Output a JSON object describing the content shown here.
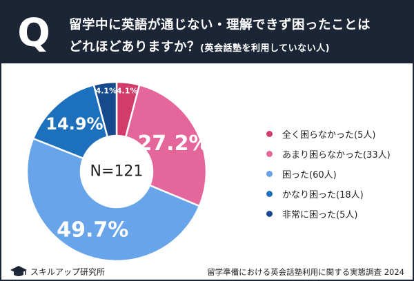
{
  "header": {
    "badge": "Q",
    "question_line1": "留学中に英語が通じない・理解できず困ったことは",
    "question_line2": "どれほどありますか？",
    "question_note": "(英会話塾を利用していない人)"
  },
  "chart_data": {
    "type": "pie",
    "center_label": "N=121",
    "slices": [
      {
        "label": "全く困らなかった(5人)",
        "value": 4.1,
        "display": "4.1%",
        "color": "#d23c6b"
      },
      {
        "label": "あまり困らなかった(33人)",
        "value": 27.2,
        "display": "27.2%",
        "color": "#e5669b"
      },
      {
        "label": "困った(60人)",
        "value": 49.7,
        "display": "49.7%",
        "color": "#68a4ea"
      },
      {
        "label": "かなり困った(18人)",
        "value": 14.9,
        "display": "14.9%",
        "color": "#1d70bc"
      },
      {
        "label": "非常に困った(5人)",
        "value": 4.1,
        "display": "4.1%",
        "color": "#164a8c"
      }
    ]
  },
  "footer": {
    "brand": "スキルアップ研究所",
    "survey_title": "留学準備における英会話塾利用に関する実態調査 2024"
  }
}
